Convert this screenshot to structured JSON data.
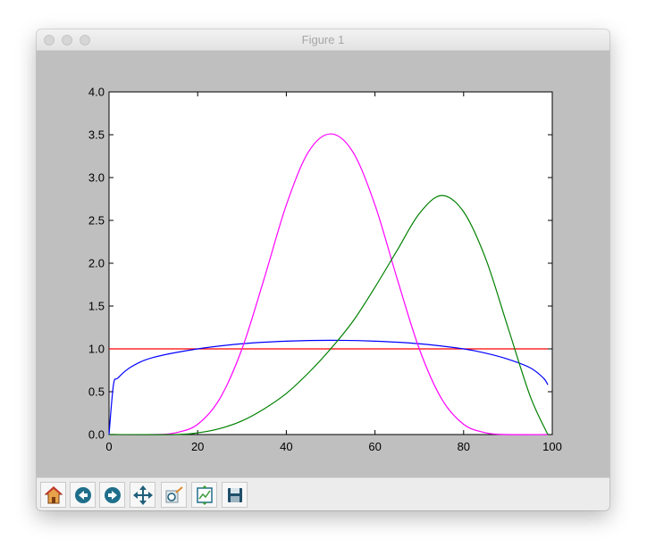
{
  "window": {
    "title": "Figure 1"
  },
  "toolbar": {
    "buttons": [
      {
        "icon": "home-icon"
      },
      {
        "icon": "back-icon"
      },
      {
        "icon": "forward-icon"
      },
      {
        "icon": "pan-icon"
      },
      {
        "icon": "zoom-icon"
      },
      {
        "icon": "subplots-icon"
      },
      {
        "icon": "save-icon"
      }
    ]
  },
  "chart_data": {
    "type": "line",
    "title": "",
    "xlabel": "",
    "ylabel": "",
    "xlim": [
      0,
      100
    ],
    "ylim": [
      0,
      4.0
    ],
    "xticks": [
      "0",
      "20",
      "40",
      "60",
      "80",
      "100"
    ],
    "yticks": [
      "0.0",
      "0.5",
      "1.0",
      "1.5",
      "2.0",
      "2.5",
      "3.0",
      "3.5",
      "4.0"
    ],
    "grid": false,
    "series": [
      {
        "color": "#ff0000",
        "x": [
          0,
          25,
          50,
          75,
          99
        ],
        "y": [
          1.0,
          1.0,
          1.0,
          1.0,
          1.0
        ]
      },
      {
        "color": "#0000ff",
        "x": [
          0,
          1,
          2,
          5,
          10,
          20,
          30,
          40,
          50,
          60,
          70,
          80,
          85,
          90,
          95,
          98,
          99
        ],
        "y": [
          0,
          0.58,
          0.66,
          0.79,
          0.9,
          1.0,
          1.06,
          1.09,
          1.1,
          1.09,
          1.06,
          1.0,
          0.95,
          0.88,
          0.78,
          0.66,
          0.58
        ]
      },
      {
        "color": "#ff00ff",
        "x": [
          0,
          10,
          15,
          20,
          25,
          30,
          35,
          40,
          45,
          50,
          55,
          60,
          65,
          70,
          75,
          80,
          85,
          90,
          99
        ],
        "y": [
          0,
          0.0,
          0.02,
          0.12,
          0.42,
          1.0,
          1.82,
          2.68,
          3.3,
          3.51,
          3.3,
          2.68,
          1.82,
          1.0,
          0.42,
          0.12,
          0.02,
          0.0,
          0
        ]
      },
      {
        "color": "#008000",
        "x": [
          0,
          15,
          20,
          25,
          30,
          35,
          40,
          45,
          50,
          55,
          60,
          65,
          70,
          75,
          80,
          85,
          90,
          95,
          99
        ],
        "y": [
          0,
          0.0,
          0.02,
          0.07,
          0.16,
          0.3,
          0.48,
          0.72,
          1.0,
          1.32,
          1.72,
          2.15,
          2.58,
          2.79,
          2.6,
          2.05,
          1.25,
          0.45,
          0.0
        ]
      }
    ]
  }
}
